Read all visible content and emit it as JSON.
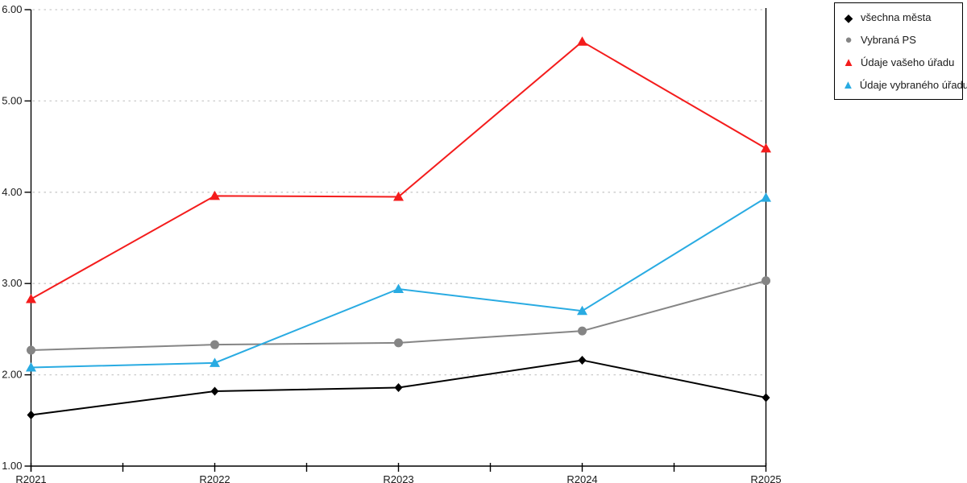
{
  "chart_data": {
    "type": "line",
    "x": [
      "R2021",
      "R2022",
      "R2023",
      "R2024",
      "R2025"
    ],
    "series": [
      {
        "name": "všechna města",
        "marker": "diamond",
        "color": "#000000",
        "values": [
          1.56,
          1.82,
          1.86,
          2.16,
          1.75
        ]
      },
      {
        "name": "Vybraná PS",
        "marker": "circle",
        "color": "#858585",
        "values": [
          2.27,
          2.33,
          2.35,
          2.48,
          3.03
        ]
      },
      {
        "name": "Údaje vašeho úřadu",
        "marker": "triangle",
        "color": "#f41c1c",
        "values": [
          2.83,
          3.96,
          3.95,
          5.65,
          4.48
        ]
      },
      {
        "name": "Údaje vybraného úřadu",
        "marker": "triangle",
        "color": "#29abe2",
        "values": [
          2.08,
          2.13,
          2.94,
          2.7,
          3.94
        ]
      }
    ],
    "ylim": [
      1,
      6
    ],
    "ytick_labels": [
      "1.00",
      "2.00",
      "3.00",
      "4.00",
      "5.00",
      "6.00"
    ],
    "grid": "horizontal-dotted",
    "legend_position": "outside-top-right",
    "title": "",
    "xlabel": "",
    "ylabel": ""
  },
  "marker_glyphs": {
    "diamond": "◆",
    "circle": "●",
    "triangle": "▲"
  },
  "colors": {
    "background": "#ffffff",
    "grid": "#c9c9c9",
    "axis": "#000000",
    "tick_text": "#1a1a1a",
    "legend_border": "#000000"
  }
}
